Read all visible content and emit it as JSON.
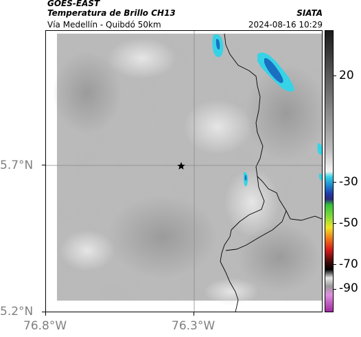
{
  "header": {
    "satellite": "GOES-EAST",
    "product": "Temperatura de Brillo CH13",
    "region": "Vía Medellín - Quibdó 50km",
    "org": "SIATA",
    "timestamp": "2024-08-16 10:29"
  },
  "axes": {
    "y_labels": [
      "5.7°N",
      "5.2°N"
    ],
    "x_labels": [
      "76.8°W",
      "76.3°W"
    ]
  },
  "colorbar": {
    "labels": [
      "20",
      "-30",
      "-50",
      "-70",
      "-90"
    ],
    "colors": {
      "warm_top": "#1a1a1a",
      "warm_bottom": "#f2f2f2",
      "cyan": "#36d3e6",
      "blue": "#1f3aa8",
      "green": "#35c23a",
      "yellow": "#f0e62a",
      "orange": "#ee7a18",
      "red": "#d61a1a",
      "magenta": "#c03bbf"
    }
  },
  "map": {
    "marker_icon": "star-icon",
    "cloud_color": "#2ec9de",
    "cloud_core_color": "#1a6fc0"
  }
}
